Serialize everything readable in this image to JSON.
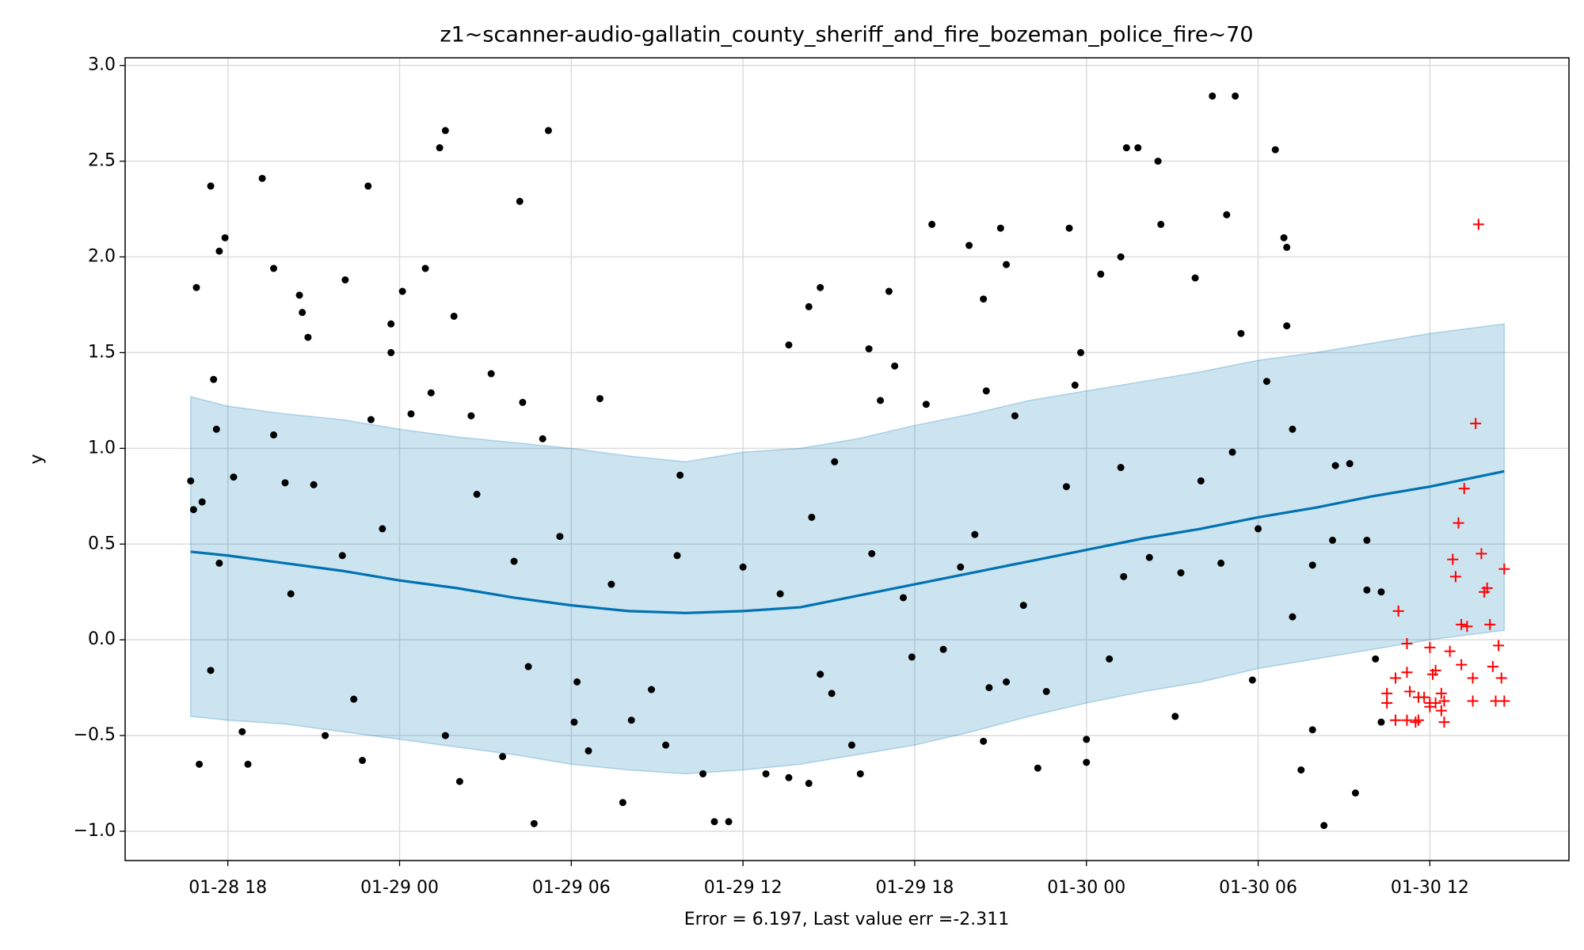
{
  "chart_data": {
    "type": "forecast",
    "title": "z1~scanner-audio-gallatin_county_sheriff_and_fire_bozeman_police_fire~70",
    "xlabel": "Error = 6.197, Last value err =-2.311",
    "ylabel": "y",
    "xlim": [
      14.41,
      64.86
    ],
    "xticks": [
      {
        "value": 18,
        "label": "01-28 18"
      },
      {
        "value": 24,
        "label": "01-29 00"
      },
      {
        "value": 30,
        "label": "01-29 06"
      },
      {
        "value": 36,
        "label": "01-29 12"
      },
      {
        "value": 42,
        "label": "01-29 18"
      },
      {
        "value": 48,
        "label": "01-30 00"
      },
      {
        "value": 54,
        "label": "01-30 06"
      },
      {
        "value": 60,
        "label": "01-30 12"
      }
    ],
    "ylim": [
      -1.153,
      3.04
    ],
    "yticks": [
      {
        "value": -1,
        "label": "−1.0"
      },
      {
        "value": -0.5,
        "label": "−0.5"
      },
      {
        "value": 0,
        "label": "0.0"
      },
      {
        "value": 0.5,
        "label": "0.5"
      },
      {
        "value": 1,
        "label": "1.0"
      },
      1.5,
      {
        "value": 2,
        "label": "2.0"
      },
      2.5,
      {
        "value": 3,
        "label": "3.0"
      }
    ],
    "grid": true,
    "forecast": {
      "color": "#0072b2",
      "band_color": "#0072b2",
      "x": [
        16.7,
        18,
        20,
        22,
        24,
        26,
        28,
        30,
        32,
        34,
        36,
        38,
        40,
        42,
        44,
        46,
        48,
        50,
        52,
        54,
        56,
        58,
        60,
        62.6
      ],
      "values": [
        0.46,
        0.44,
        0.4,
        0.36,
        0.31,
        0.27,
        0.22,
        0.18,
        0.15,
        0.14,
        0.15,
        0.17,
        0.23,
        0.29,
        0.35,
        0.41,
        0.47,
        0.53,
        0.58,
        0.64,
        0.69,
        0.75,
        0.8,
        0.88
      ],
      "upper": [
        1.27,
        1.22,
        1.18,
        1.15,
        1.1,
        1.06,
        1.03,
        1.0,
        0.96,
        0.93,
        0.98,
        1.0,
        1.05,
        1.12,
        1.18,
        1.25,
        1.3,
        1.35,
        1.4,
        1.46,
        1.5,
        1.55,
        1.6,
        1.65
      ],
      "lower": [
        -0.4,
        -0.42,
        -0.44,
        -0.48,
        -0.52,
        -0.56,
        -0.6,
        -0.65,
        -0.68,
        -0.7,
        -0.68,
        -0.65,
        -0.6,
        -0.55,
        -0.48,
        -0.4,
        -0.33,
        -0.27,
        -0.22,
        -0.15,
        -0.1,
        -0.05,
        0.0,
        0.05
      ]
    },
    "observed": {
      "color": "#000000",
      "marker": "dot",
      "x": [
        37.6,
        38.3,
        38.7,
        38.4,
        39.2,
        41.1,
        40.4,
        41.3,
        40.8,
        42.6,
        42.4,
        43.9,
        44.4,
        44.5,
        45.0,
        45.2,
        44.4,
        45.5,
        46.3,
        47.4,
        47.6,
        47.8,
        48.0,
        48.5,
        49.2,
        49.4,
        49.8,
        50.5,
        50.6,
        51.8,
        52.4,
        52.9,
        53.2,
        53.4,
        54.6,
        54.9,
        55.0,
        55.0,
        55.2,
        55.5,
        56.3,
        56.7,
        57.4,
        57.8,
        58.3,
        58.3,
        54.3,
        54.0,
        53.8,
        53.1,
        51.1,
        51.3,
        50.2,
        49.3,
        48.8,
        48.0,
        47.3,
        46.6,
        45.8,
        45.2,
        44.6,
        44.1,
        43.6,
        43.0,
        41.9,
        41.6,
        40.5,
        40.1,
        39.8,
        39.1,
        38.7,
        38.3,
        37.6,
        37.3,
        36.8,
        36.0,
        35.5,
        35.0,
        34.6,
        33.8,
        33.7,
        33.3,
        32.8,
        32.1,
        31.8,
        31.4,
        31.0,
        30.6,
        30.1,
        29.6,
        29.2,
        29.0,
        28.7,
        28.3,
        28.2,
        28.0,
        27.6,
        27.2,
        26.7,
        26.5,
        26.1,
        25.9,
        25.6,
        25.4,
        25.1,
        24.9,
        24.4,
        24.1,
        23.7,
        23.7,
        23.4,
        22.9,
        23.0,
        22.7,
        22.1,
        22.0,
        21.4,
        20.8,
        20.6,
        20.5,
        20.2,
        19.6,
        19.2,
        18.7,
        18.5,
        18.2,
        17.9,
        17.7,
        17.6,
        17.5,
        17.4,
        17.4,
        17.0,
        16.9,
        16.7,
        16.8,
        17.1,
        17.7,
        19.6,
        20.0,
        21.0,
        22.4,
        25.6,
        28.5,
        30.2,
        55.2,
        55.9,
        56.6,
        57.8,
        58.1,
        55.9,
        57.2,
        49.2,
        52.0,
        52.7
      ],
      "values": [
        1.54,
        1.74,
        1.84,
        0.64,
        0.93,
        1.82,
        1.52,
        1.43,
        1.25,
        2.17,
        1.23,
        2.06,
        1.78,
        1.3,
        2.15,
        1.96,
        -0.53,
        1.17,
        -0.67,
        2.15,
        1.33,
        1.5,
        -0.64,
        1.91,
        2.0,
        2.57,
        2.57,
        2.5,
        2.17,
        1.89,
        2.84,
        2.22,
        2.84,
        1.6,
        2.56,
        2.1,
        2.05,
        1.64,
        1.1,
        -0.68,
        -0.97,
        0.91,
        -0.8,
        0.52,
        0.25,
        -0.43,
        1.35,
        0.58,
        -0.21,
        0.98,
        -0.4,
        0.35,
        0.43,
        0.33,
        -0.1,
        -0.52,
        0.8,
        -0.27,
        0.18,
        -0.22,
        -0.25,
        0.55,
        0.38,
        -0.05,
        -0.09,
        0.22,
        0.45,
        -0.7,
        -0.55,
        -0.28,
        -0.18,
        -0.75,
        -0.72,
        0.24,
        -0.7,
        0.38,
        -0.95,
        -0.95,
        -0.7,
        0.86,
        0.44,
        -0.55,
        -0.26,
        -0.42,
        -0.85,
        0.29,
        1.26,
        -0.58,
        -0.43,
        0.54,
        2.66,
        1.05,
        -0.96,
        1.24,
        2.29,
        0.41,
        -0.61,
        1.39,
        0.76,
        1.17,
        -0.74,
        1.69,
        2.66,
        2.57,
        1.29,
        1.94,
        1.18,
        1.82,
        1.5,
        1.65,
        0.58,
        2.37,
        1.15,
        -0.63,
        1.88,
        0.44,
        -0.5,
        1.58,
        1.71,
        1.8,
        0.24,
        1.94,
        2.41,
        -0.65,
        -0.48,
        0.85,
        2.1,
        2.03,
        1.1,
        1.36,
        2.37,
        -0.16,
        -0.65,
        1.84,
        0.83,
        0.68,
        0.72,
        0.4,
        1.07,
        0.82,
        0.81,
        -0.31,
        -0.5,
        -0.14,
        -0.22,
        0.12,
        0.39,
        0.52,
        0.26,
        -0.1,
        -0.47,
        0.92,
        0.9,
        0.83,
        0.4
      ]
    },
    "actual": {
      "color": "#ff0000",
      "marker": "plus",
      "x": [
        61.7,
        61.6,
        61.2,
        61.0,
        60.8,
        60.9,
        61.8,
        62.6,
        62.0,
        61.9,
        58.9,
        61.1,
        61.3,
        62.1,
        62.4,
        59.2,
        60.0,
        60.7,
        60.2,
        61.1,
        62.2,
        58.8,
        59.2,
        60.1,
        61.5,
        62.5,
        58.5,
        59.3,
        59.8,
        60.4,
        60.0,
        60.2,
        60.5,
        61.5,
        62.3,
        62.6,
        58.5,
        59.6,
        58.8,
        59.2,
        59.5,
        59.6,
        60.4,
        60.5,
        60.0
      ],
      "values": [
        2.17,
        1.13,
        0.79,
        0.61,
        0.42,
        0.33,
        0.45,
        0.37,
        0.27,
        0.25,
        0.15,
        0.08,
        0.07,
        0.08,
        -0.03,
        -0.02,
        -0.04,
        -0.06,
        -0.16,
        -0.13,
        -0.14,
        -0.2,
        -0.17,
        -0.18,
        -0.2,
        -0.2,
        -0.28,
        -0.27,
        -0.3,
        -0.28,
        -0.33,
        -0.33,
        -0.32,
        -0.32,
        -0.32,
        -0.32,
        -0.33,
        -0.3,
        -0.42,
        -0.42,
        -0.43,
        -0.42,
        -0.37,
        -0.43,
        -0.35
      ]
    }
  }
}
